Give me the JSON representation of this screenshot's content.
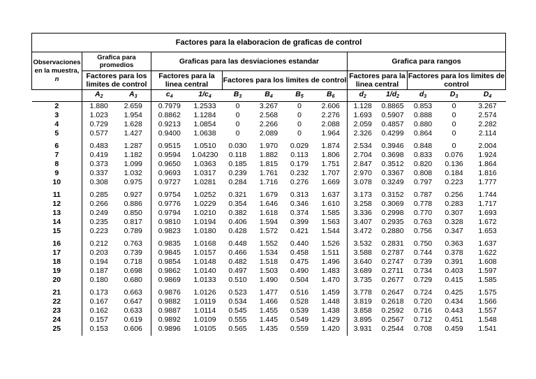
{
  "title": "Factores para la elaboracion de graficas de control",
  "header": {
    "row_label": "Observaciones en la muestra,",
    "row_var": "n",
    "groups": [
      {
        "label": "Grafica para promedios",
        "subgroups": [
          "Factores para los limites de control"
        ]
      },
      {
        "label": "Graficas para las desviaciones estandar",
        "subgroups": [
          "Factores para la linea central",
          "Factores para los limites de control"
        ]
      },
      {
        "label": "Grafica para rangos",
        "subgroups": [
          "Factores para la linea central",
          "Factores para los limites de control"
        ]
      }
    ],
    "columns": [
      {
        "symbol": "A",
        "sub": "2"
      },
      {
        "symbol": "A",
        "sub": "3"
      },
      {
        "symbol": "c",
        "sub": "4"
      },
      {
        "symbol": "1/c",
        "sub": "4"
      },
      {
        "symbol": "B",
        "sub": "3"
      },
      {
        "symbol": "B",
        "sub": "4"
      },
      {
        "symbol": "B",
        "sub": "5"
      },
      {
        "symbol": "B",
        "sub": "6"
      },
      {
        "symbol": "d",
        "sub": "2"
      },
      {
        "symbol": "1/d",
        "sub": "2"
      },
      {
        "symbol": "d",
        "sub": "3"
      },
      {
        "symbol": "D",
        "sub": "3"
      },
      {
        "symbol": "D",
        "sub": "4"
      }
    ]
  },
  "row_groups": [
    [
      {
        "n": "2",
        "values": [
          "1.880",
          "2.659",
          "0.7979",
          "1.2533",
          "0",
          "3.267",
          "0",
          "2.606",
          "1.128",
          "0.8865",
          "0.853",
          "0",
          "3.267"
        ]
      },
      {
        "n": "3",
        "values": [
          "1.023",
          "1.954",
          "0.8862",
          "1.1284",
          "0",
          "2.568",
          "0",
          "2.276",
          "1.693",
          "0.5907",
          "0.888",
          "0",
          "2.574"
        ]
      },
      {
        "n": "4",
        "values": [
          "0.729",
          "1.628",
          "0.9213",
          "1.0854",
          "0",
          "2.266",
          "0",
          "2.088",
          "2.059",
          "0.4857",
          "0.880",
          "0",
          "2.282"
        ]
      },
      {
        "n": "5",
        "values": [
          "0.577",
          "1.427",
          "0.9400",
          "1.0638",
          "0",
          "2.089",
          "0",
          "1.964",
          "2.326",
          "0.4299",
          "0.864",
          "0",
          "2.114"
        ]
      }
    ],
    [
      {
        "n": "6",
        "values": [
          "0.483",
          "1.287",
          "0.9515",
          "1.0510",
          "0.030",
          "1.970",
          "0.029",
          "1.874",
          "2.534",
          "0.3946",
          "0.848",
          "0",
          "2.004"
        ]
      },
      {
        "n": "7",
        "values": [
          "0.419",
          "1.182",
          "0.9594",
          "1.04230",
          "0.118",
          "1.882",
          "0.113",
          "1.806",
          "2.704",
          "0.3698",
          "0.833",
          "0.076",
          "1.924"
        ]
      },
      {
        "n": "8",
        "values": [
          "0.373",
          "1.099",
          "0.9650",
          "1.0363",
          "0.185",
          "1.815",
          "0.179",
          "1.751",
          "2.847",
          "0.3512",
          "0.820",
          "0.136",
          "1.864"
        ]
      },
      {
        "n": "9",
        "values": [
          "0.337",
          "1.032",
          "0.9693",
          "1.0317",
          "0.239",
          "1.761",
          "0.232",
          "1.707",
          "2.970",
          "0.3367",
          "0.808",
          "0.184",
          "1.816"
        ]
      },
      {
        "n": "10",
        "values": [
          "0.308",
          "0.975",
          "0.9727",
          "1.0281",
          "0.284",
          "1.716",
          "0.276",
          "1.669",
          "3.078",
          "0.3249",
          "0.797",
          "0.223",
          "1.777"
        ]
      }
    ],
    [
      {
        "n": "11",
        "values": [
          "0.285",
          "0.927",
          "0.9754",
          "1.0252",
          "0.321",
          "1.679",
          "0.313",
          "1.637",
          "3.173",
          "0.3152",
          "0.787",
          "0.256",
          "1.744"
        ]
      },
      {
        "n": "12",
        "values": [
          "0.266",
          "0.886",
          "0.9776",
          "1.0229",
          "0.354",
          "1.646",
          "0.346",
          "1.610",
          "3.258",
          "0.3069",
          "0.778",
          "0.283",
          "1.717"
        ]
      },
      {
        "n": "13",
        "values": [
          "0.249",
          "0.850",
          "0.9794",
          "1.0210",
          "0.382",
          "1.618",
          "0.374",
          "1.585",
          "3.336",
          "0.2998",
          "0.770",
          "0.307",
          "1.693"
        ]
      },
      {
        "n": "14",
        "values": [
          "0.235",
          "0.817",
          "0.9810",
          "1.0194",
          "0.406",
          "1.594",
          "0.399",
          "1.563",
          "3.407",
          "0.2935",
          "0.763",
          "0.328",
          "1.672"
        ]
      },
      {
        "n": "15",
        "values": [
          "0.223",
          "0.789",
          "0.9823",
          "1.0180",
          "0.428",
          "1.572",
          "0.421",
          "1.544",
          "3.472",
          "0.2880",
          "0.756",
          "0.347",
          "1.653"
        ]
      }
    ],
    [
      {
        "n": "16",
        "values": [
          "0.212",
          "0.763",
          "0.9835",
          "1.0168",
          "0.448",
          "1.552",
          "0.440",
          "1.526",
          "3.532",
          "0.2831",
          "0.750",
          "0.363",
          "1.637"
        ]
      },
      {
        "n": "17",
        "values": [
          "0.203",
          "0.739",
          "0.9845",
          "1.0157",
          "0.466",
          "1.534",
          "0.458",
          "1.511",
          "3.588",
          "0.2787",
          "0.744",
          "0.378",
          "1.622"
        ]
      },
      {
        "n": "18",
        "values": [
          "0.194",
          "0.718",
          "0.9854",
          "1.0148",
          "0.482",
          "1.518",
          "0.475",
          "1.496",
          "3.640",
          "0.2747",
          "0.739",
          "0.391",
          "1.608"
        ]
      },
      {
        "n": "19",
        "values": [
          "0.187",
          "0.698",
          "0.9862",
          "1.0140",
          "0.497",
          "1.503",
          "0.490",
          "1.483",
          "3.689",
          "0.2711",
          "0.734",
          "0.403",
          "1.597"
        ]
      },
      {
        "n": "20",
        "values": [
          "0.180",
          "0.680",
          "0.9869",
          "1.0133",
          "0.510",
          "1.490",
          "0.504",
          "1.470",
          "3.735",
          "0.2677",
          "0.729",
          "0.415",
          "1.585"
        ]
      }
    ],
    [
      {
        "n": "21",
        "values": [
          "0.173",
          "0.663",
          "0.9876",
          "1.0126",
          "0.523",
          "1.477",
          "0.516",
          "1.459",
          "3.778",
          "0.2647",
          "0.724",
          "0.425",
          "1.575"
        ]
      },
      {
        "n": "22",
        "values": [
          "0.167",
          "0.647",
          "0.9882",
          "1.0119",
          "0.534",
          "1.466",
          "0.528",
          "1.448",
          "3.819",
          "0.2618",
          "0.720",
          "0.434",
          "1.566"
        ]
      },
      {
        "n": "23",
        "values": [
          "0.162",
          "0.633",
          "0.9887",
          "1.0114",
          "0.545",
          "1.455",
          "0.539",
          "1.438",
          "3.858",
          "0.2592",
          "0.716",
          "0.443",
          "1.557"
        ]
      },
      {
        "n": "24",
        "values": [
          "0.157",
          "0.619",
          "0.9892",
          "1.0109",
          "0.555",
          "1.445",
          "0.549",
          "1.429",
          "3.895",
          "0.2567",
          "0.712",
          "0.451",
          "1.548"
        ]
      },
      {
        "n": "25",
        "values": [
          "0.153",
          "0.606",
          "0.9896",
          "1.0105",
          "0.565",
          "1.435",
          "0.559",
          "1.420",
          "3.931",
          "0.2544",
          "0.708",
          "0.459",
          "1.541"
        ]
      }
    ]
  ]
}
